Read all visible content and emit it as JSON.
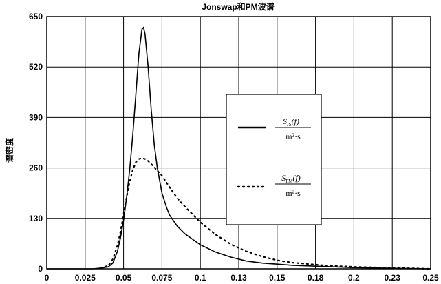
{
  "chart_data": {
    "type": "line",
    "title": "Jonswap和PM波谱",
    "ylabel": "谱密度",
    "xlabel": "",
    "xlim": [
      0,
      0.25
    ],
    "ylim": [
      0,
      650
    ],
    "x_ticks": [
      "0",
      "0.025",
      "0.05",
      "0.075",
      "0.1",
      "0.13",
      "0.15",
      "0.18",
      "0.2",
      "0.23",
      "0.25"
    ],
    "y_ticks": [
      "0",
      "130",
      "260",
      "390",
      "520",
      "650"
    ],
    "grid": true,
    "legend_position": "right",
    "series": [
      {
        "key": "js",
        "style": "solid",
        "legend": {
          "main": "S",
          "sub": "JS",
          "arg": "(f)",
          "unit": "m²·s"
        },
        "x": [
          0,
          0.02,
          0.03,
          0.035,
          0.04,
          0.043,
          0.046,
          0.048,
          0.05,
          0.052,
          0.054,
          0.056,
          0.058,
          0.06,
          0.062,
          0.063,
          0.064,
          0.066,
          0.068,
          0.07,
          0.072,
          0.075,
          0.078,
          0.08,
          0.085,
          0.09,
          0.1,
          0.11,
          0.12,
          0.13,
          0.14,
          0.15,
          0.16,
          0.18,
          0.2,
          0.25
        ],
        "y": [
          0,
          0,
          0,
          2,
          5,
          15,
          45,
          80,
          125,
          185,
          255,
          345,
          450,
          555,
          618,
          622,
          605,
          520,
          410,
          320,
          260,
          195,
          158,
          138,
          110,
          90,
          62,
          43,
          30,
          20,
          15,
          12,
          9,
          6,
          3,
          0
        ]
      },
      {
        "key": "pm",
        "style": "dotted",
        "legend": {
          "main": "S",
          "sub": "PM",
          "arg": "(f)",
          "unit": "m²·s"
        },
        "x": [
          0.035,
          0.04,
          0.043,
          0.046,
          0.048,
          0.05,
          0.052,
          0.054,
          0.056,
          0.058,
          0.06,
          0.062,
          0.064,
          0.066,
          0.068,
          0.07,
          0.075,
          0.08,
          0.085,
          0.09,
          0.1,
          0.11,
          0.12,
          0.13,
          0.14,
          0.15,
          0.16,
          0.18,
          0.2,
          0.25
        ],
        "y": [
          2,
          8,
          25,
          60,
          95,
          140,
          185,
          225,
          255,
          275,
          283,
          285,
          283,
          278,
          270,
          262,
          240,
          210,
          182,
          160,
          120,
          88,
          63,
          45,
          32,
          22,
          16,
          9,
          5,
          0
        ]
      }
    ]
  }
}
